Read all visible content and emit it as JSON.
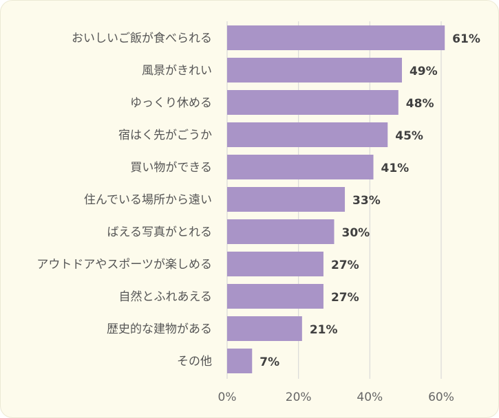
{
  "chart_data": {
    "type": "bar",
    "orientation": "horizontal",
    "categories": [
      "おいしいご飯が食べられる",
      "風景がきれい",
      "ゆっくり休める",
      "宿はく先がごうか",
      "買い物ができる",
      "住んでいる場所から遠い",
      "ばえる写真がとれる",
      "アウトドアやスポーツが楽しめる",
      "自然とふれあえる",
      "歴史的な建物がある",
      "その他"
    ],
    "values": [
      61,
      49,
      48,
      45,
      41,
      33,
      30,
      27,
      27,
      21,
      7
    ],
    "data_labels": [
      "61%",
      "49%",
      "48%",
      "45%",
      "41%",
      "33%",
      "30%",
      "27%",
      "27%",
      "21%",
      "7%"
    ],
    "xlim": [
      0,
      60
    ],
    "xticks": [
      0,
      20,
      40,
      60
    ],
    "xtick_labels": [
      "0%",
      "20%",
      "40%",
      "60%"
    ],
    "grid": "vertical",
    "legend": "none",
    "colors": {
      "bar": "#a994c7",
      "background": "#fdfbec",
      "grid": "#d9d9d9"
    }
  }
}
